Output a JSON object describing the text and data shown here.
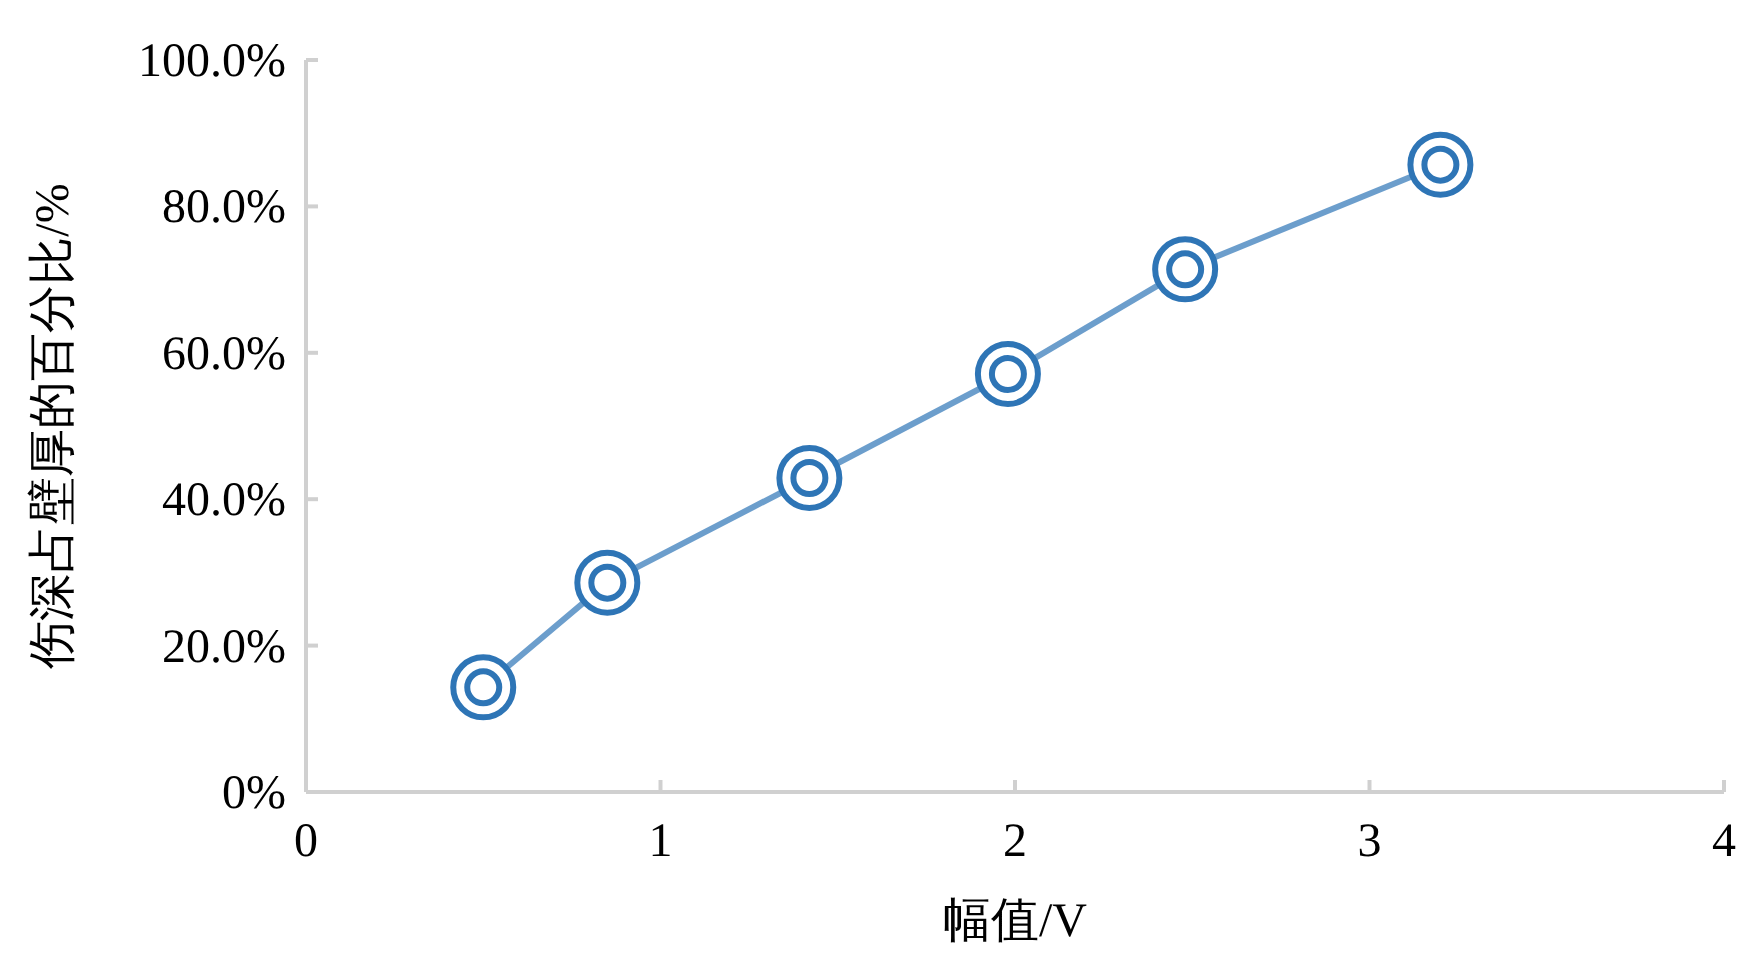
{
  "chart_data": {
    "type": "line",
    "xlabel": "幅值/V",
    "ylabel": "伤深占壁厚的百分比/%",
    "xlim": [
      0,
      4
    ],
    "xticks": [
      0,
      1,
      2,
      3,
      4
    ],
    "ylim": [
      0,
      100
    ],
    "yticks": [
      {
        "value": 0,
        "label": "0%"
      },
      {
        "value": 20,
        "label": "20.0%"
      },
      {
        "value": 40,
        "label": "40.0%"
      },
      {
        "value": 60,
        "label": "60.0%"
      },
      {
        "value": 80,
        "label": "80.0%"
      },
      {
        "value": 100,
        "label": "100.0%"
      }
    ],
    "grid": false,
    "marker": "circle",
    "line_style": "solid",
    "series": [
      {
        "color": "#2e75b6",
        "x": [
          0.5,
          0.85,
          1.42,
          1.98,
          2.48,
          3.2
        ],
        "values": [
          14.3,
          28.6,
          42.9,
          57.1,
          71.4,
          85.7
        ]
      }
    ]
  }
}
